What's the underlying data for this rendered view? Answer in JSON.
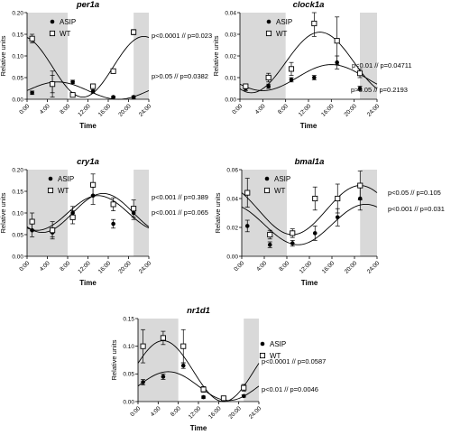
{
  "chart_data": [
    {
      "type": "scatter",
      "title": "per1a",
      "ylabel": "Relative units",
      "xlabel": "Time",
      "xlim": [
        0,
        24
      ],
      "ylim": [
        0,
        0.2
      ],
      "xticks": [
        "0:00",
        "4:00",
        "8:00",
        "12:00",
        "16:00",
        "20:00",
        "24:00"
      ],
      "yticks": [
        "0.00",
        "0.05",
        "0.10",
        "0.15",
        "0.20"
      ],
      "shaded": [
        [
          0,
          8
        ],
        [
          21,
          24
        ]
      ],
      "legend": [
        "ASIP",
        "WT"
      ],
      "series": [
        {
          "name": "ASIP",
          "marker": "filled-circle",
          "x": [
            1,
            5,
            9,
            13,
            17,
            21
          ],
          "y": [
            0.015,
            0.035,
            0.04,
            0.018,
            0.005,
            0.005
          ],
          "err": [
            0.004,
            0.02,
            0.004,
            0.004,
            0.002,
            0.003
          ],
          "fit": {
            "mesor": 0.02,
            "amp": 0.02,
            "peak": 6
          }
        },
        {
          "name": "WT",
          "marker": "open-square",
          "x": [
            1,
            5,
            9,
            13,
            17,
            21
          ],
          "y": [
            0.14,
            0.035,
            0.01,
            0.03,
            0.065,
            0.155
          ],
          "err": [
            0.01,
            0.03,
            0.005,
            0.005,
            0.005,
            0.006
          ],
          "fit": {
            "mesor": 0.075,
            "amp": 0.07,
            "peak": 23
          }
        }
      ],
      "annotations": [
        "p<0.0001 // p=0.023",
        "p>0.05 // p=0.0382"
      ]
    },
    {
      "type": "scatter",
      "title": "clock1a",
      "ylabel": "Relative units",
      "xlabel": "Time",
      "xlim": [
        0,
        24
      ],
      "ylim": [
        0,
        0.04
      ],
      "xticks": [
        "0:00",
        "4:00",
        "8:00",
        "12:00",
        "16:00",
        "20:00",
        "24:00"
      ],
      "yticks": [
        "0.00",
        "0.01",
        "0.02",
        "0.03",
        "0.04"
      ],
      "shaded": [
        [
          0,
          8
        ],
        [
          21,
          24
        ]
      ],
      "legend": [
        "ASIP",
        "WT"
      ],
      "series": [
        {
          "name": "ASIP",
          "marker": "filled-circle",
          "x": [
            1,
            5,
            9,
            13,
            17,
            21
          ],
          "y": [
            0.005,
            0.006,
            0.009,
            0.01,
            0.017,
            0.005
          ],
          "err": [
            0.001,
            0.001,
            0.001,
            0.001,
            0.003,
            0.001
          ],
          "fit": {
            "mesor": 0.01,
            "amp": 0.006,
            "peak": 16
          }
        },
        {
          "name": "WT",
          "marker": "open-square",
          "x": [
            1,
            5,
            9,
            13,
            17,
            21
          ],
          "y": [
            0.006,
            0.01,
            0.014,
            0.035,
            0.027,
            0.012
          ],
          "err": [
            0.001,
            0.002,
            0.003,
            0.006,
            0.011,
            0.002
          ],
          "fit": {
            "mesor": 0.017,
            "amp": 0.014,
            "peak": 14
          }
        }
      ],
      "annotations": [
        "p<0.01 // p=0.04711",
        "p>0.05 // p=0.2193"
      ]
    },
    {
      "type": "scatter",
      "title": "cry1a",
      "ylabel": "Relative units",
      "xlabel": "Time",
      "xlim": [
        0,
        24
      ],
      "ylim": [
        0,
        0.2
      ],
      "xticks": [
        "0:00",
        "4:00",
        "8:00",
        "12:00",
        "16:00",
        "20:00",
        "24:00"
      ],
      "yticks": [
        "0.00",
        "0.05",
        "0.10",
        "0.15",
        "0.20"
      ],
      "shaded": [
        [
          0,
          8
        ],
        [
          21,
          24
        ]
      ],
      "legend": [
        "ASIP",
        "WT"
      ],
      "series": [
        {
          "name": "ASIP",
          "marker": "filled-circle",
          "x": [
            1,
            5,
            9,
            13,
            17,
            21
          ],
          "y": [
            0.06,
            0.055,
            0.1,
            0.14,
            0.075,
            0.1
          ],
          "err": [
            0.015,
            0.01,
            0.015,
            0.02,
            0.01,
            0.015
          ],
          "fit": {
            "mesor": 0.1,
            "amp": 0.04,
            "peak": 14
          }
        },
        {
          "name": "WT",
          "marker": "open-square",
          "x": [
            1,
            5,
            9,
            13,
            17,
            21
          ],
          "y": [
            0.08,
            0.06,
            0.09,
            0.165,
            0.12,
            0.11
          ],
          "err": [
            0.02,
            0.02,
            0.015,
            0.025,
            0.015,
            0.02
          ],
          "fit": {
            "mesor": 0.1,
            "amp": 0.045,
            "peak": 15
          }
        }
      ],
      "annotations": [
        "p<0.001 // p=0.389",
        "p<0.001 // p=0.065"
      ]
    },
    {
      "type": "scatter",
      "title": "bmal1a",
      "ylabel": "Relative units",
      "xlabel": "Time",
      "xlim": [
        0,
        24
      ],
      "ylim": [
        0,
        0.06
      ],
      "xticks": [
        "0:00",
        "4:00",
        "8:00",
        "12:00",
        "16:00",
        "20:00",
        "24:00"
      ],
      "yticks": [
        "0.00",
        "0.02",
        "0.04",
        "0.06"
      ],
      "shaded": [
        [
          0,
          8
        ],
        [
          21,
          24
        ]
      ],
      "legend": [
        "ASIP",
        "WT"
      ],
      "series": [
        {
          "name": "ASIP",
          "marker": "filled-circle",
          "x": [
            1,
            5,
            9,
            13,
            17,
            21
          ],
          "y": [
            0.021,
            0.008,
            0.009,
            0.016,
            0.027,
            0.04
          ],
          "err": [
            0.004,
            0.002,
            0.002,
            0.005,
            0.006,
            0.008
          ],
          "fit": {
            "mesor": 0.022,
            "amp": 0.014,
            "peak": 22
          }
        },
        {
          "name": "WT",
          "marker": "open-square",
          "x": [
            1,
            5,
            9,
            13,
            17,
            21
          ],
          "y": [
            0.044,
            0.015,
            0.016,
            0.04,
            0.04,
            0.049
          ],
          "err": [
            0.01,
            0.003,
            0.003,
            0.008,
            0.01,
            0.01
          ],
          "fit": {
            "mesor": 0.032,
            "amp": 0.017,
            "peak": 21
          }
        }
      ],
      "annotations": [
        "p<0.05 // p=0.105",
        "p<0.001 // p=0.031"
      ]
    },
    {
      "type": "scatter",
      "title": "nr1d1",
      "ylabel": "Relative units",
      "xlabel": "Time",
      "xlim": [
        0,
        24
      ],
      "ylim": [
        0,
        0.15
      ],
      "xticks": [
        "0:00",
        "4:00",
        "8:00",
        "12:00",
        "16:00",
        "20:00",
        "24:00"
      ],
      "yticks": [
        "0.00",
        "0.05",
        "0.10",
        "0.15"
      ],
      "shaded": [
        [
          0,
          8
        ],
        [
          21,
          24
        ]
      ],
      "legend": [
        "ASIP",
        "WT"
      ],
      "series": [
        {
          "name": "ASIP",
          "marker": "filled-circle",
          "x": [
            1,
            5,
            9,
            13,
            17,
            21
          ],
          "y": [
            0.035,
            0.045,
            0.065,
            0.008,
            0.003,
            0.01
          ],
          "err": [
            0.005,
            0.005,
            0.005,
            0.002,
            0.001,
            0.002
          ],
          "fit": {
            "mesor": 0.028,
            "amp": 0.026,
            "peak": 6
          }
        },
        {
          "name": "WT",
          "marker": "open-square",
          "x": [
            1,
            5,
            9,
            13,
            17,
            21
          ],
          "y": [
            0.1,
            0.115,
            0.1,
            0.022,
            0.006,
            0.025
          ],
          "err": [
            0.03,
            0.012,
            0.03,
            0.005,
            0.002,
            0.006
          ],
          "fit": {
            "mesor": 0.055,
            "amp": 0.055,
            "peak": 5
          }
        }
      ],
      "annotations": [
        "p<0.0001 // p=0.0587",
        "p<0.01 // p=0.0046"
      ]
    }
  ]
}
